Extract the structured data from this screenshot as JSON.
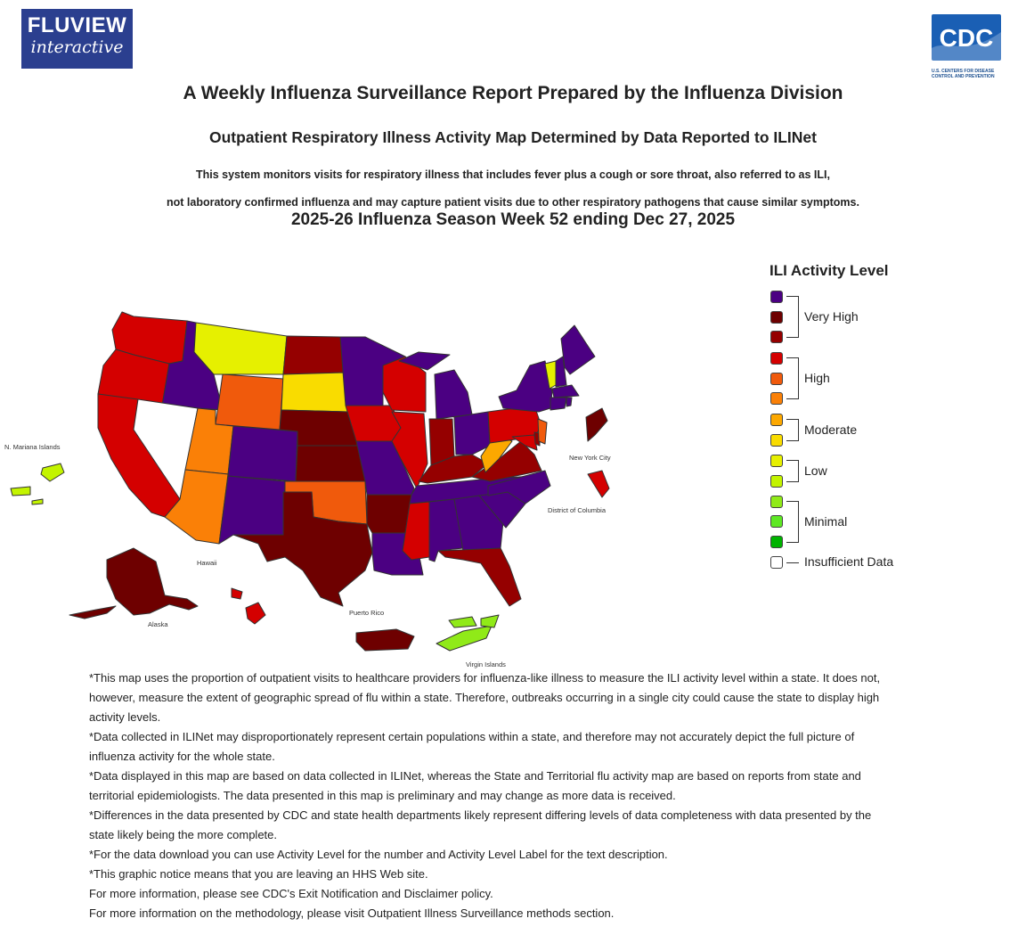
{
  "header": {
    "fluview_logo": {
      "line1": "FLUVIEW",
      "line2": "interactive"
    },
    "cdc_logo": {
      "text": "CDC",
      "caption": "U.S. CENTERS FOR DISEASE CONTROL AND PREVENTION"
    }
  },
  "titles": {
    "report_title": "A Weekly Influenza Surveillance Report Prepared by the Influenza Division",
    "map_title": "Outpatient Respiratory Illness Activity Map Determined by Data Reported to ILINet",
    "description_line1": "This system monitors visits for respiratory illness that includes fever plus a cough or sore throat, also referred to as ILI,",
    "description_line2": "not laboratory confirmed influenza and may capture patient visits due to other respiratory pathogens that cause similar symptoms.",
    "season": "2025-26 Influenza Season Week 52 ending Dec 27, 2025"
  },
  "colors": {
    "purple": "#4b0082",
    "darkred": "#6e0000",
    "red2": "#950000",
    "red": "#d40000",
    "orange_red": "#f05a0c",
    "orange": "#fa8007",
    "amber": "#fca800",
    "yellow": "#f9dc00",
    "lime_yellow": "#e6f000",
    "yellow_green": "#c3f400",
    "green_light": "#90ea18",
    "green": "#5ee824",
    "green_dark": "#00b300",
    "white": "#ffffff",
    "border": "#333333"
  },
  "legend": {
    "title": "ILI Activity Level",
    "groups": [
      {
        "label": "Very High",
        "colors": [
          "#4b0082",
          "#6e0000",
          "#950000"
        ]
      },
      {
        "label": "High",
        "colors": [
          "#d40000",
          "#f05a0c",
          "#fa8007"
        ]
      },
      {
        "label": "Moderate",
        "colors": [
          "#fca800",
          "#f9dc00"
        ]
      },
      {
        "label": "Low",
        "colors": [
          "#e6f000",
          "#c3f400"
        ]
      },
      {
        "label": "Minimal",
        "colors": [
          "#90ea18",
          "#5ee824",
          "#00b300"
        ]
      },
      {
        "label": "Insufficient Data",
        "colors": [
          "#ffffff"
        ]
      }
    ]
  },
  "map": {
    "labels": {
      "mariana": "N. Mariana Islands",
      "nyc": "New York City",
      "dc": "District of Columbia",
      "hawaii": "Hawaii",
      "alaska": "Alaska",
      "puerto_rico": "Puerto Rico",
      "virgin_islands": "Virgin Islands"
    },
    "state_levels": {
      "WA": "red",
      "OR": "red",
      "CA": "red",
      "ID": "purple",
      "NV": "white",
      "MT": "lime_yellow",
      "WY": "orange_red",
      "UT": "orange",
      "AZ": "orange",
      "CO": "purple",
      "NM": "purple",
      "ND": "red2",
      "SD": "yellow",
      "NE": "darkred",
      "KS": "darkred",
      "OK": "orange_red",
      "TX": "darkred",
      "MN": "purple",
      "IA": "red",
      "MO": "purple",
      "AR": "darkred",
      "LA": "purple",
      "WI": "red",
      "IL": "red",
      "MI": "purple",
      "IN": "red2",
      "OH": "purple",
      "KY": "red2",
      "TN": "purple",
      "MS": "red",
      "AL": "purple",
      "GA": "purple",
      "FL": "red2",
      "SC": "purple",
      "NC": "purple",
      "VA": "red2",
      "WV": "amber",
      "PA": "red",
      "NY": "purple",
      "VT": "lime_yellow",
      "NH": "purple",
      "ME": "purple",
      "MA": "purple",
      "CT": "purple",
      "NJ": "orange_red",
      "MD": "red",
      "DE": "red2",
      "AK": "darkred",
      "HI": "red",
      "PR": "darkred",
      "VI": "green_light",
      "MP": "yellow_green",
      "NYC": "red",
      "DC": "darkred"
    }
  },
  "notes": [
    "*This map uses the proportion of outpatient visits to healthcare providers for influenza-like illness to measure the ILI activity level within a state. It does not, however, measure the extent of geographic spread of flu within a state. Therefore, outbreaks occurring in a single city could cause the state to display high activity levels.",
    "*Data collected in ILINet may disproportionately represent certain populations within a state, and therefore may not accurately depict the full picture of influenza activity for the whole state.",
    "*Data displayed in this map are based on data collected in ILINet, whereas the State and Territorial flu activity map are based on reports from state and territorial epidemiologists. The data presented in this map is preliminary and may change as more data is received.",
    "*Differences in the data presented by CDC and state health departments likely represent differing levels of data completeness with data presented by the state likely being the more complete.",
    "*For the data download you can use Activity Level for the number and Activity Level Label for the text description.",
    "*This graphic notice means that you are leaving an HHS Web site.",
    "For more information, please see CDC's Exit Notification and Disclaimer policy.",
    "For more information on the methodology, please visit Outpatient Illness Surveillance methods section."
  ]
}
